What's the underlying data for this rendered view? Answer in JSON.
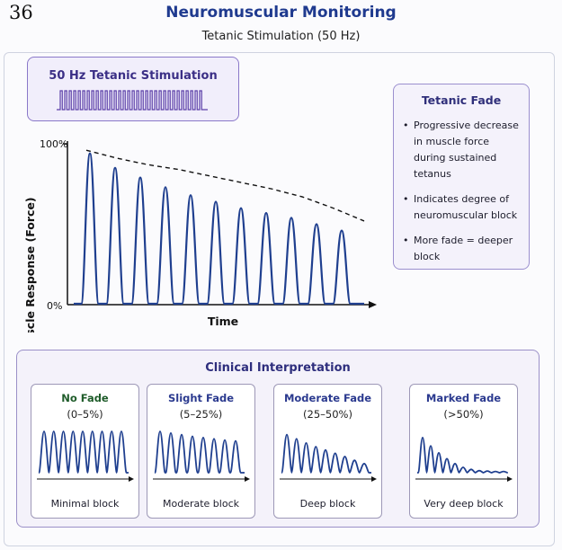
{
  "page_number": "36",
  "title": "Neuromuscular Monitoring",
  "subtitle": "Tetanic Stimulation (50 Hz)",
  "stimulus": {
    "label": "50 Hz Tetanic Stimulation",
    "pulse_count": 32
  },
  "fade_panel": {
    "heading": "Tetanic Fade",
    "bullets": [
      "Progressive decrease in muscle force during sustained tetanus",
      "Indicates degree of neuromuscular block",
      "More fade = deeper block"
    ]
  },
  "chart_data": {
    "type": "line",
    "xlabel": "Time",
    "ylabel": "Muscle Response (Force)",
    "y_ticks": [
      "100%",
      "0%"
    ],
    "ylim": [
      0,
      100
    ],
    "peaks_percent": [
      94,
      85,
      79,
      73,
      68,
      64,
      60,
      57,
      54,
      50,
      46
    ],
    "fade_envelope_percent": [
      96,
      91,
      87,
      84,
      80,
      76,
      72,
      67,
      60,
      52
    ]
  },
  "clinical": {
    "heading": "Clinical Interpretation",
    "cards": [
      {
        "title": "No Fade",
        "range": "(0–5%)",
        "label": "Minimal block",
        "title_color": "#1f5c2a",
        "peaks": [
          100,
          100,
          100,
          100,
          100,
          100,
          100,
          100,
          100
        ]
      },
      {
        "title": "Slight Fade",
        "range": "(5–25%)",
        "label": "Moderate block",
        "title_color": "#2b3a8f",
        "peaks": [
          100,
          96,
          92,
          88,
          85,
          82,
          79,
          77
        ]
      },
      {
        "title": "Moderate Fade",
        "range": "(25–50%)",
        "label": "Deep block",
        "title_color": "#2b3a8f",
        "peaks": [
          92,
          82,
          72,
          63,
          55,
          47,
          39,
          30,
          22
        ]
      },
      {
        "title": "Marked Fade",
        "range": "(>50%)",
        "label": "Very deep block",
        "title_color": "#2b3a8f",
        "peaks": [
          85,
          65,
          48,
          34,
          22,
          13,
          8,
          5,
          4,
          3,
          3
        ]
      }
    ]
  }
}
